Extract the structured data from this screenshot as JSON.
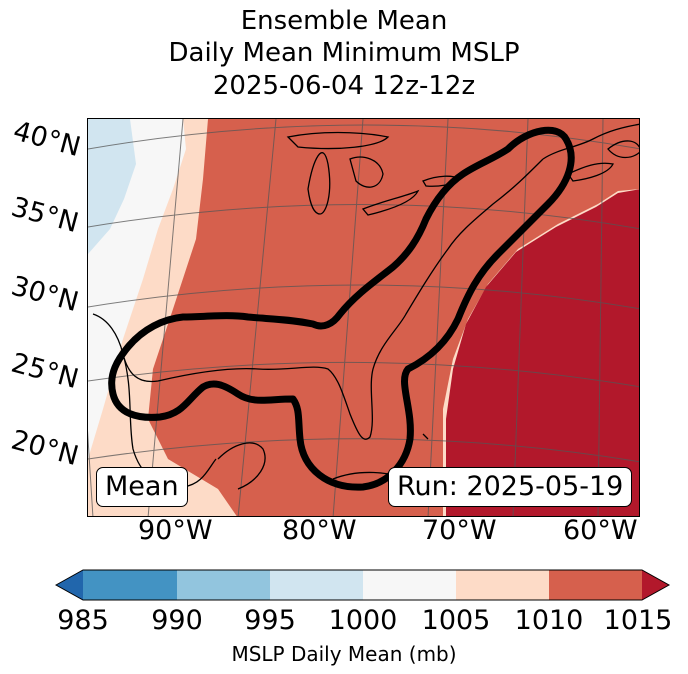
{
  "title": {
    "line1": "Ensemble Mean",
    "line2": "Daily Mean Minimum MSLP",
    "line3": "2025-06-04 12z-12z"
  },
  "map": {
    "lat_labels": [
      "40°N",
      "35°N",
      "30°N",
      "25°N",
      "20°N"
    ],
    "lon_labels": [
      "90°W",
      "80°W",
      "70°W",
      "60°W"
    ],
    "mean_box": "Mean",
    "run_box": "Run: 2025-05-19"
  },
  "colorbar": {
    "label": "MSLP Daily Mean (mb)",
    "ticks": [
      "985",
      "990",
      "995",
      "1000",
      "1005",
      "1010",
      "1015"
    ],
    "colors": [
      "#2166ac",
      "#4393c3",
      "#92c5de",
      "#d1e5f0",
      "#f7f7f7",
      "#fddbc7",
      "#d6604d",
      "#b2182b"
    ]
  }
}
